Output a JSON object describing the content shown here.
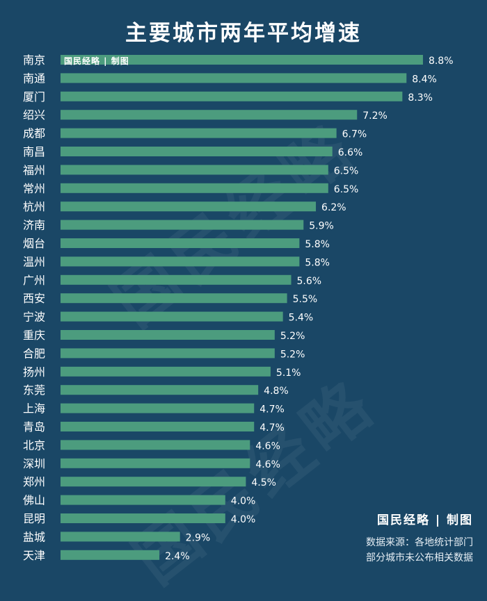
{
  "title": "主要城市两年平均增速",
  "watermark": "国民经略",
  "brand_inline": "国民经略 | 制图",
  "brand": "国民经略 | 制图",
  "source_line1": "数据来源：各地统计部门",
  "source_line2": "部分城市未公布相关数据",
  "colors": {
    "background": "#1a4766",
    "bar": "#4c9c7e",
    "text": "#ffffff"
  },
  "chart_data": {
    "type": "bar",
    "orientation": "horizontal",
    "title": "主要城市两年平均增速",
    "categories": [
      "南京",
      "南通",
      "厦门",
      "绍兴",
      "成都",
      "南昌",
      "福州",
      "常州",
      "杭州",
      "济南",
      "烟台",
      "温州",
      "广州",
      "西安",
      "宁波",
      "重庆",
      "合肥",
      "扬州",
      "东莞",
      "上海",
      "青岛",
      "北京",
      "深圳",
      "郑州",
      "佛山",
      "昆明",
      "盐城",
      "天津"
    ],
    "values": [
      8.8,
      8.4,
      8.3,
      7.2,
      6.7,
      6.6,
      6.5,
      6.5,
      6.2,
      5.9,
      5.8,
      5.8,
      5.6,
      5.5,
      5.4,
      5.2,
      5.2,
      5.1,
      4.8,
      4.7,
      4.7,
      4.6,
      4.6,
      4.5,
      4.0,
      4.0,
      2.9,
      2.4
    ],
    "data_labels": [
      "8.8%",
      "8.4%",
      "8.3%",
      "7.2%",
      "6.7%",
      "6.6%",
      "6.5%",
      "6.5%",
      "6.2%",
      "5.9%",
      "5.8%",
      "5.8%",
      "5.6%",
      "5.5%",
      "5.4%",
      "5.2%",
      "5.2%",
      "5.1%",
      "4.8%",
      "4.7%",
      "4.7%",
      "4.6%",
      "4.6%",
      "4.5%",
      "4.0%",
      "4.0%",
      "2.9%",
      "2.4%"
    ],
    "value_unit": "%",
    "grid": false,
    "legend": "none"
  }
}
